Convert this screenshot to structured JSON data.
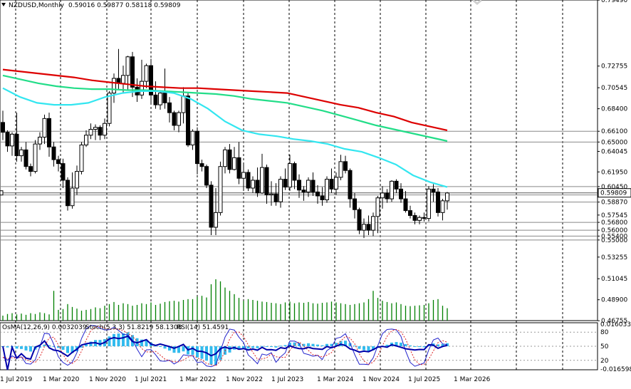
{
  "header": {
    "symbol": "NZDUSD,Monthly",
    "ohlc": "0.59016 0.59877 0.58118 0.59809"
  },
  "indicator_header": {
    "osma": "OsMA(12,26,9) 0.0032039",
    "stoch": "Stoch(5,3,3) 51.8219 58.1308",
    "rsi": "RSI(14) 51.4591"
  },
  "colors": {
    "bull_candle": "#ffffff",
    "bear_candle": "#000000",
    "volume": "#008000",
    "ma_red": "#dd0000",
    "ma_green": "#22dd88",
    "ma_cyan": "#33e6f0",
    "osma_bars": "#33bbee",
    "stoch_main": "#2222cc",
    "stoch_signal": "#dd2222",
    "rsi": "#0000aa",
    "grid": "#000000",
    "level_line": "#888888"
  },
  "chart_data": {
    "type": "candlestick",
    "timeframe": "Monthly",
    "ylim": [
      0.4677,
      0.795
    ],
    "y_ticks": [
      "0.79490",
      "0.72755",
      "0.70545",
      "0.68400",
      "0.66100",
      "0.65000",
      "0.64045",
      "0.61950",
      "0.60450",
      "0.59600",
      "0.58870",
      "0.57545",
      "0.56800",
      "0.56000",
      "0.55400",
      "0.55000",
      "0.53255",
      "0.51045",
      "0.48900",
      "0.46755"
    ],
    "price_levels": [
      0.661,
      0.65,
      0.6045,
      0.596,
      0.5887,
      0.568,
      0.56,
      0.554,
      0.55
    ],
    "current_price_label": "0.59809",
    "x_labels": [
      "1 Jul 2019",
      "1 Mar 2020",
      "1 Nov 2020",
      "1 Jul 2021",
      "1 Mar 2022",
      "1 Nov 2022",
      "1 Jul 2023",
      "1 Mar 2024",
      "1 Nov 2024",
      "1 Jul 2025",
      "1 Mar 2026"
    ],
    "candles": [
      [
        0.67,
        0.682,
        0.652,
        0.66
      ],
      [
        0.66,
        0.662,
        0.64,
        0.646
      ],
      [
        0.646,
        0.66,
        0.636,
        0.658
      ],
      [
        0.658,
        0.68,
        0.63,
        0.636
      ],
      [
        0.636,
        0.645,
        0.63,
        0.642
      ],
      [
        0.642,
        0.65,
        0.622,
        0.625
      ],
      [
        0.625,
        0.628,
        0.615,
        0.62
      ],
      [
        0.62,
        0.652,
        0.618,
        0.648
      ],
      [
        0.648,
        0.66,
        0.642,
        0.655
      ],
      [
        0.655,
        0.678,
        0.648,
        0.674
      ],
      [
        0.674,
        0.68,
        0.635,
        0.645
      ],
      [
        0.645,
        0.65,
        0.625,
        0.632
      ],
      [
        0.632,
        0.636,
        0.62,
        0.628
      ],
      [
        0.628,
        0.633,
        0.603,
        0.611
      ],
      [
        0.611,
        0.614,
        0.58,
        0.585
      ],
      [
        0.585,
        0.619,
        0.582,
        0.603
      ],
      [
        0.603,
        0.626,
        0.596,
        0.62
      ],
      [
        0.62,
        0.65,
        0.617,
        0.647
      ],
      [
        0.647,
        0.662,
        0.645,
        0.657
      ],
      [
        0.657,
        0.669,
        0.653,
        0.663
      ],
      [
        0.663,
        0.668,
        0.652,
        0.665
      ],
      [
        0.665,
        0.667,
        0.652,
        0.657
      ],
      [
        0.657,
        0.674,
        0.653,
        0.669
      ],
      [
        0.669,
        0.702,
        0.666,
        0.7
      ],
      [
        0.7,
        0.72,
        0.69,
        0.715
      ],
      [
        0.715,
        0.745,
        0.704,
        0.71
      ],
      [
        0.71,
        0.728,
        0.7,
        0.718
      ],
      [
        0.718,
        0.738,
        0.703,
        0.737
      ],
      [
        0.737,
        0.742,
        0.696,
        0.706
      ],
      [
        0.706,
        0.715,
        0.691,
        0.698
      ],
      [
        0.698,
        0.734,
        0.694,
        0.712
      ],
      [
        0.712,
        0.73,
        0.705,
        0.728
      ],
      [
        0.728,
        0.735,
        0.69,
        0.698
      ],
      [
        0.698,
        0.712,
        0.684,
        0.688
      ],
      [
        0.688,
        0.703,
        0.683,
        0.7
      ],
      [
        0.7,
        0.725,
        0.684,
        0.69
      ],
      [
        0.69,
        0.696,
        0.67,
        0.68
      ],
      [
        0.68,
        0.682,
        0.662,
        0.667
      ],
      [
        0.667,
        0.682,
        0.66,
        0.68
      ],
      [
        0.68,
        0.706,
        0.669,
        0.697
      ],
      [
        0.697,
        0.7,
        0.645,
        0.647
      ],
      [
        0.647,
        0.663,
        0.642,
        0.661
      ],
      [
        0.661,
        0.665,
        0.617,
        0.628
      ],
      [
        0.628,
        0.632,
        0.62,
        0.625
      ],
      [
        0.625,
        0.627,
        0.603,
        0.606
      ],
      [
        0.606,
        0.61,
        0.555,
        0.563
      ],
      [
        0.563,
        0.603,
        0.555,
        0.578
      ],
      [
        0.578,
        0.63,
        0.575,
        0.625
      ],
      [
        0.625,
        0.645,
        0.618,
        0.642
      ],
      [
        0.642,
        0.648,
        0.618,
        0.622
      ],
      [
        0.622,
        0.645,
        0.621,
        0.634
      ],
      [
        0.634,
        0.65,
        0.607,
        0.613
      ],
      [
        0.613,
        0.628,
        0.6,
        0.619
      ],
      [
        0.619,
        0.622,
        0.6,
        0.603
      ],
      [
        0.603,
        0.615,
        0.598,
        0.611
      ],
      [
        0.611,
        0.624,
        0.594,
        0.598
      ],
      [
        0.598,
        0.638,
        0.597,
        0.624
      ],
      [
        0.624,
        0.627,
        0.587,
        0.596
      ],
      [
        0.596,
        0.61,
        0.585,
        0.597
      ],
      [
        0.597,
        0.608,
        0.585,
        0.589
      ],
      [
        0.589,
        0.615,
        0.583,
        0.612
      ],
      [
        0.612,
        0.623,
        0.601,
        0.604
      ],
      [
        0.604,
        0.637,
        0.6,
        0.628
      ],
      [
        0.628,
        0.63,
        0.602,
        0.611
      ],
      [
        0.611,
        0.617,
        0.593,
        0.601
      ],
      [
        0.601,
        0.605,
        0.59,
        0.599
      ],
      [
        0.599,
        0.614,
        0.594,
        0.611
      ],
      [
        0.611,
        0.619,
        0.595,
        0.599
      ],
      [
        0.599,
        0.606,
        0.587,
        0.595
      ],
      [
        0.595,
        0.604,
        0.585,
        0.591
      ],
      [
        0.591,
        0.615,
        0.588,
        0.612
      ],
      [
        0.612,
        0.623,
        0.598,
        0.602
      ],
      [
        0.602,
        0.619,
        0.596,
        0.614
      ],
      [
        0.614,
        0.637,
        0.611,
        0.63
      ],
      [
        0.63,
        0.636,
        0.618,
        0.621
      ],
      [
        0.621,
        0.623,
        0.583,
        0.592
      ],
      [
        0.592,
        0.598,
        0.572,
        0.581
      ],
      [
        0.581,
        0.583,
        0.556,
        0.56
      ],
      [
        0.56,
        0.572,
        0.552,
        0.566
      ],
      [
        0.566,
        0.575,
        0.555,
        0.56
      ],
      [
        0.56,
        0.578,
        0.554,
        0.574
      ],
      [
        0.574,
        0.595,
        0.557,
        0.593
      ],
      [
        0.593,
        0.605,
        0.582,
        0.598
      ],
      [
        0.598,
        0.602,
        0.588,
        0.592
      ],
      [
        0.592,
        0.611,
        0.589,
        0.61
      ],
      [
        0.61,
        0.612,
        0.598,
        0.602
      ],
      [
        0.602,
        0.608,
        0.588,
        0.592
      ],
      [
        0.592,
        0.6,
        0.578,
        0.58
      ],
      [
        0.58,
        0.585,
        0.572,
        0.575
      ],
      [
        0.575,
        0.578,
        0.566,
        0.57
      ],
      [
        0.57,
        0.575,
        0.566,
        0.573
      ],
      [
        0.573,
        0.578,
        0.569,
        0.572
      ],
      [
        0.572,
        0.605,
        0.569,
        0.602
      ],
      [
        0.602,
        0.607,
        0.589,
        0.599
      ],
      [
        0.599,
        0.603,
        0.574,
        0.578
      ],
      [
        0.578,
        0.592,
        0.57,
        0.59
      ],
      [
        0.59,
        0.599,
        0.581,
        0.598
      ]
    ],
    "volume_levels": [
      0.12,
      0.16,
      0.18,
      0.15,
      0.17,
      0.14,
      0.18,
      0.16,
      0.2,
      0.18,
      0.15,
      0.72,
      0.26,
      0.28,
      0.4,
      0.33,
      0.29,
      0.24,
      0.26,
      0.28,
      0.32,
      0.3,
      0.36,
      0.4,
      0.45,
      0.38,
      0.42,
      0.4,
      0.36,
      0.38,
      0.42,
      0.4,
      0.44,
      0.38,
      0.41,
      0.45,
      0.47,
      0.48,
      0.46,
      0.5,
      0.52,
      0.52,
      0.58,
      0.6,
      0.56,
      0.88,
      1.0,
      0.95,
      0.8,
      0.72,
      0.64,
      0.55,
      0.48,
      0.52,
      0.5,
      0.48,
      0.46,
      0.45,
      0.43,
      0.42,
      0.4,
      0.44,
      0.46,
      0.42,
      0.44,
      0.43,
      0.45,
      0.42,
      0.41,
      0.43,
      0.44,
      0.46,
      0.44,
      0.42,
      0.4,
      0.38,
      0.4,
      0.42,
      0.44,
      0.52,
      0.72,
      0.55,
      0.48,
      0.45,
      0.42,
      0.44,
      0.4,
      0.36,
      0.35,
      0.36,
      0.37,
      0.38,
      0.42,
      0.5,
      0.52,
      0.36,
      0.3
    ],
    "moving_averages": [
      {
        "color_key": "ma_red",
        "values": [
          0.724,
          0.722,
          0.72,
          0.718,
          0.716,
          0.713,
          0.711,
          0.709,
          0.707,
          0.706,
          0.705,
          0.705,
          0.704,
          0.703,
          0.702,
          0.701,
          0.7,
          0.696,
          0.692,
          0.688,
          0.685,
          0.68,
          0.676,
          0.67,
          0.666,
          0.662
        ]
      },
      {
        "color_key": "ma_green",
        "values": [
          0.718,
          0.714,
          0.71,
          0.707,
          0.705,
          0.704,
          0.704,
          0.703,
          0.703,
          0.702,
          0.701,
          0.7,
          0.699,
          0.697,
          0.694,
          0.692,
          0.69,
          0.686,
          0.682,
          0.677,
          0.672,
          0.667,
          0.663,
          0.659,
          0.655,
          0.651
        ]
      },
      {
        "color_key": "ma_cyan",
        "values": [
          0.705,
          0.696,
          0.69,
          0.688,
          0.688,
          0.69,
          0.696,
          0.7,
          0.702,
          0.702,
          0.7,
          0.694,
          0.684,
          0.671,
          0.662,
          0.658,
          0.656,
          0.653,
          0.651,
          0.648,
          0.643,
          0.64,
          0.634,
          0.627,
          0.616,
          0.609,
          0.604
        ]
      }
    ],
    "indicator_panel": {
      "y_labels": [
        "0.0160332",
        "80",
        "50",
        "20",
        "-0.016598"
      ],
      "levels": [
        80,
        50,
        20
      ]
    }
  }
}
